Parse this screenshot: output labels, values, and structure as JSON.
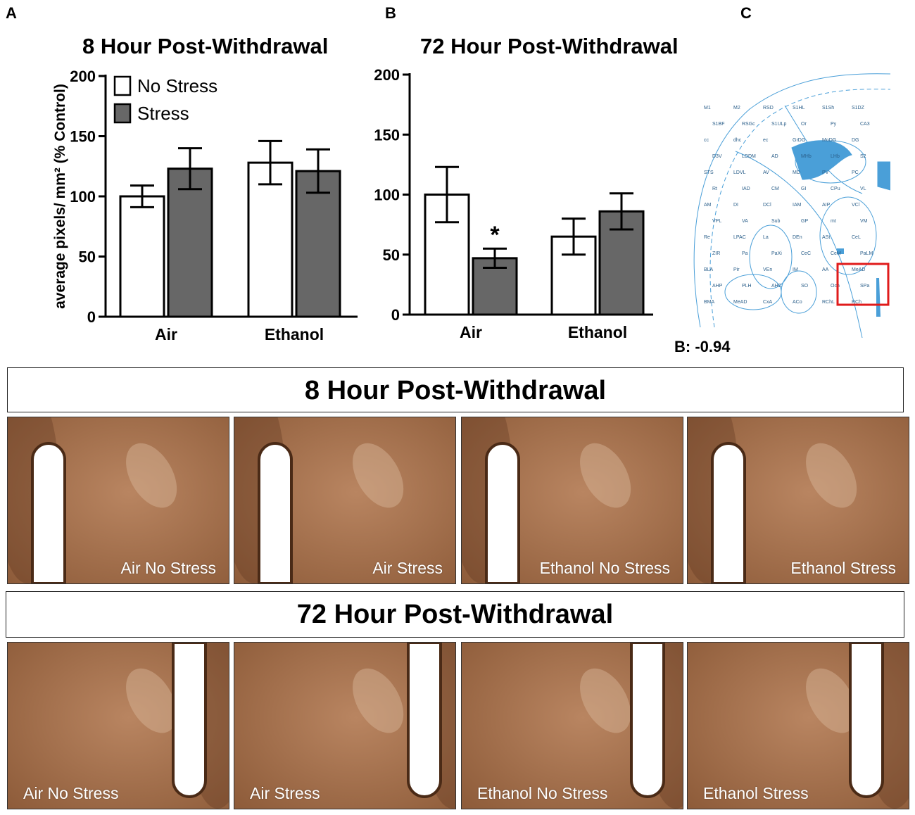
{
  "panels": {
    "a": "A",
    "b": "B",
    "c": "C"
  },
  "colors": {
    "no_stress": "#ffffff",
    "stress": "#676767",
    "atlas_line": "#4a9fd8",
    "atlas_fill": "#4a9fd8",
    "box": "#e01b1b",
    "tissue": "#a06b45"
  },
  "chart_data": [
    {
      "type": "bar",
      "title": "8 Hour Post-Withdrawal",
      "ylabel": "average pixels/ mm² (% Control)",
      "categories": [
        "Air",
        "Ethanol"
      ],
      "ylim": [
        0,
        200
      ],
      "yticks": [
        0,
        50,
        100,
        150,
        200
      ],
      "legend": {
        "position": "top-left",
        "entries": [
          "No Stress",
          "Stress"
        ]
      },
      "series": [
        {
          "name": "No Stress",
          "values": [
            100,
            128
          ],
          "errors": [
            9,
            18
          ]
        },
        {
          "name": "Stress",
          "values": [
            123,
            121
          ],
          "errors": [
            17,
            18
          ]
        }
      ],
      "annotations": []
    },
    {
      "type": "bar",
      "title": "72 Hour Post-Withdrawal",
      "ylabel": "",
      "categories": [
        "Air",
        "Ethanol"
      ],
      "ylim": [
        0,
        200
      ],
      "yticks": [
        0,
        50,
        100,
        150,
        200
      ],
      "series": [
        {
          "name": "No Stress",
          "values": [
            100,
            65
          ],
          "errors": [
            23,
            15
          ]
        },
        {
          "name": "Stress",
          "values": [
            47,
            86
          ],
          "errors": [
            8,
            15
          ]
        }
      ],
      "annotations": [
        {
          "text": "*",
          "category": "Air",
          "series": "Stress"
        }
      ]
    }
  ],
  "atlas": {
    "bregma_label": "B: -0.94",
    "regions": [
      "M1",
      "M2",
      "RSD",
      "S1HL",
      "S1Sh",
      "S1DZ",
      "S1BF",
      "RSGc",
      "S1ULp",
      "Or",
      "Py",
      "CA3",
      "cc",
      "dhc",
      "ec",
      "GrDG",
      "MoDG",
      "DG",
      "D3V",
      "LDDM",
      "AD",
      "MHb",
      "LHb",
      "S2",
      "STS",
      "LDVL",
      "AV",
      "MD",
      "PV",
      "PC",
      "Rt",
      "IAD",
      "CM",
      "GI",
      "CPu",
      "VL",
      "AM",
      "DI",
      "DCl",
      "IAM",
      "AIP",
      "VCl",
      "VPL",
      "VA",
      "Sub",
      "GP",
      "mt",
      "VM",
      "Re",
      "LPAC",
      "La",
      "DEn",
      "ASt",
      "CeL",
      "ZIR",
      "Pa",
      "PaXi",
      "CeC",
      "CeM",
      "PaLM",
      "BLA",
      "Pir",
      "VEn",
      "IM",
      "AA",
      "MeAD",
      "AHP",
      "PLH",
      "AHC",
      "SO",
      "Och",
      "SPa",
      "BMA",
      "MeAD",
      "CxA",
      "ACo",
      "RChL",
      "RCh"
    ]
  },
  "histology": {
    "rows": [
      {
        "title": "8 Hour Post-Withdrawal",
        "labels": [
          "Air No Stress",
          "Air Stress",
          "Ethanol No Stress",
          "Ethanol Stress"
        ]
      },
      {
        "title": "72 Hour Post-Withdrawal",
        "labels": [
          "Air No Stress",
          "Air Stress",
          "Ethanol No Stress",
          "Ethanol Stress"
        ]
      }
    ]
  }
}
